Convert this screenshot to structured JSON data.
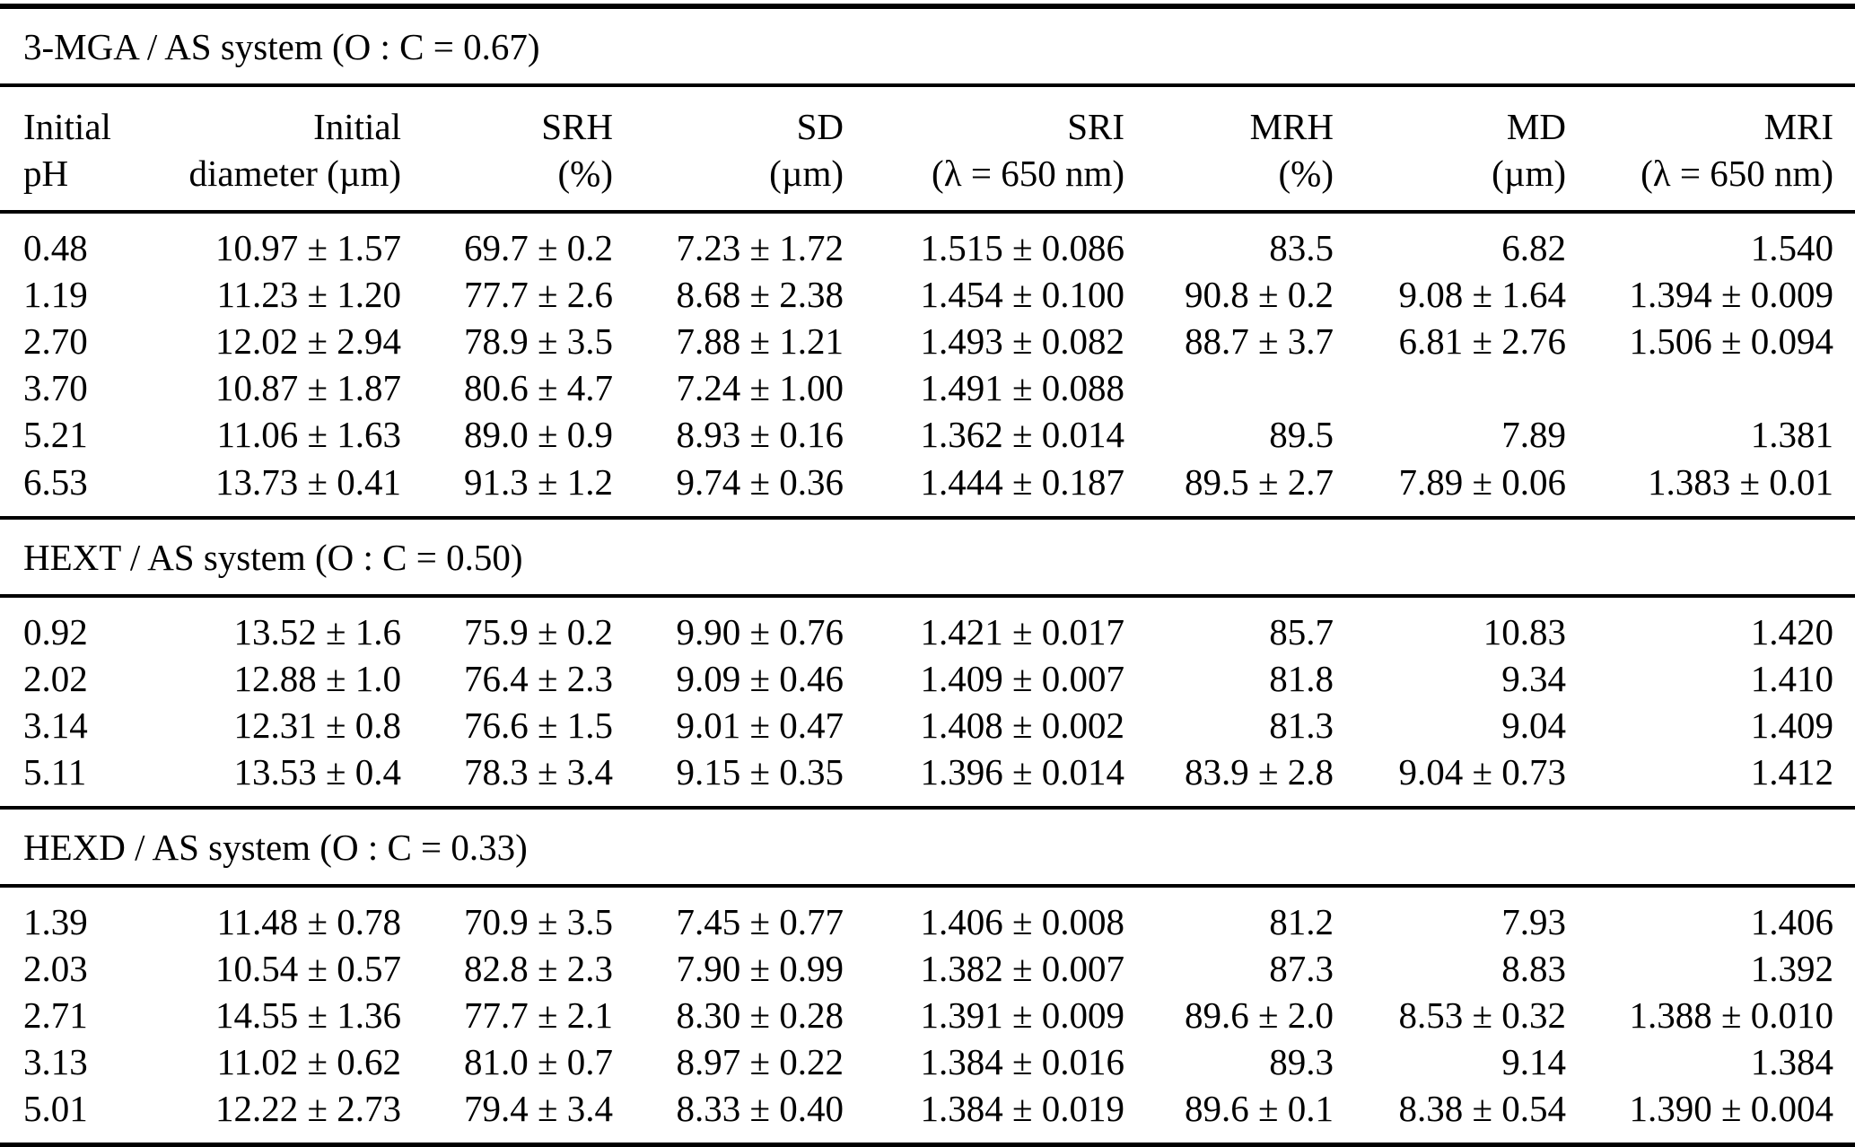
{
  "table": {
    "columns": [
      {
        "line1": "Initial",
        "line2": "pH"
      },
      {
        "line1": "Initial",
        "line2": "diameter (µm)"
      },
      {
        "line1": "SRH",
        "line2": "(%)"
      },
      {
        "line1": "SD",
        "line2": "(µm)"
      },
      {
        "line1": "SRI",
        "line2": "(λ = 650 nm)"
      },
      {
        "line1": "MRH",
        "line2": "(%)"
      },
      {
        "line1": "MD",
        "line2": "(µm)"
      },
      {
        "line1": "MRI",
        "line2": "(λ = 650 nm)"
      }
    ],
    "sections": [
      {
        "title": "3-MGA / AS system (O : C = 0.67)",
        "rows": [
          [
            "0.48",
            "10.97 ± 1.57",
            "69.7 ± 0.2",
            "7.23 ± 1.72",
            "1.515 ± 0.086",
            "83.5",
            "6.82",
            "1.540"
          ],
          [
            "1.19",
            "11.23 ± 1.20",
            "77.7 ± 2.6",
            "8.68 ± 2.38",
            "1.454 ± 0.100",
            "90.8 ± 0.2",
            "9.08 ± 1.64",
            "1.394 ± 0.009"
          ],
          [
            "2.70",
            "12.02 ± 2.94",
            "78.9 ± 3.5",
            "7.88 ± 1.21",
            "1.493 ± 0.082",
            "88.7 ± 3.7",
            "6.81 ± 2.76",
            "1.506 ± 0.094"
          ],
          [
            "3.70",
            "10.87 ± 1.87",
            "80.6 ± 4.7",
            "7.24 ± 1.00",
            "1.491 ± 0.088",
            "",
            "",
            ""
          ],
          [
            "5.21",
            "11.06 ± 1.63",
            "89.0 ± 0.9",
            "8.93 ± 0.16",
            "1.362 ± 0.014",
            "89.5",
            "7.89",
            "1.381"
          ],
          [
            "6.53",
            "13.73 ± 0.41",
            "91.3 ± 1.2",
            "9.74 ± 0.36",
            "1.444 ± 0.187",
            "89.5 ± 2.7",
            "7.89 ± 0.06",
            "1.383 ± 0.01"
          ]
        ]
      },
      {
        "title": "HEXT / AS system (O : C = 0.50)",
        "rows": [
          [
            "0.92",
            "13.52 ± 1.6",
            "75.9 ± 0.2",
            "9.90 ± 0.76",
            "1.421 ± 0.017",
            "85.7",
            "10.83",
            "1.420"
          ],
          [
            "2.02",
            "12.88 ± 1.0",
            "76.4 ± 2.3",
            "9.09 ± 0.46",
            "1.409 ± 0.007",
            "81.8",
            "9.34",
            "1.410"
          ],
          [
            "3.14",
            "12.31 ± 0.8",
            "76.6 ± 1.5",
            "9.01 ± 0.47",
            "1.408 ± 0.002",
            "81.3",
            "9.04",
            "1.409"
          ],
          [
            "5.11",
            "13.53 ± 0.4",
            "78.3 ± 3.4",
            "9.15 ± 0.35",
            "1.396 ± 0.014",
            "83.9 ± 2.8",
            "9.04 ± 0.73",
            "1.412"
          ]
        ]
      },
      {
        "title": "HEXD / AS system (O : C = 0.33)",
        "rows": [
          [
            "1.39",
            "11.48 ± 0.78",
            "70.9 ± 3.5",
            "7.45 ± 0.77",
            "1.406 ± 0.008",
            "81.2",
            "7.93",
            "1.406"
          ],
          [
            "2.03",
            "10.54 ± 0.57",
            "82.8 ± 2.3",
            "7.90 ± 0.99",
            "1.382 ± 0.007",
            "87.3",
            "8.83",
            "1.392"
          ],
          [
            "2.71",
            "14.55 ± 1.36",
            "77.7 ± 2.1",
            "8.30 ± 0.28",
            "1.391 ± 0.009",
            "89.6 ± 2.0",
            "8.53 ± 0.32",
            "1.388 ± 0.010"
          ],
          [
            "3.13",
            "11.02 ± 0.62",
            "81.0 ± 0.7",
            "8.97 ± 0.22",
            "1.384 ± 0.016",
            "89.3",
            "9.14",
            "1.384"
          ],
          [
            "5.01",
            "12.22 ± 2.73",
            "79.4 ± 3.4",
            "8.33 ± 0.40",
            "1.384 ± 0.019",
            "89.6 ± 0.1",
            "8.38 ± 0.54",
            "1.390 ± 0.004"
          ]
        ]
      }
    ]
  }
}
